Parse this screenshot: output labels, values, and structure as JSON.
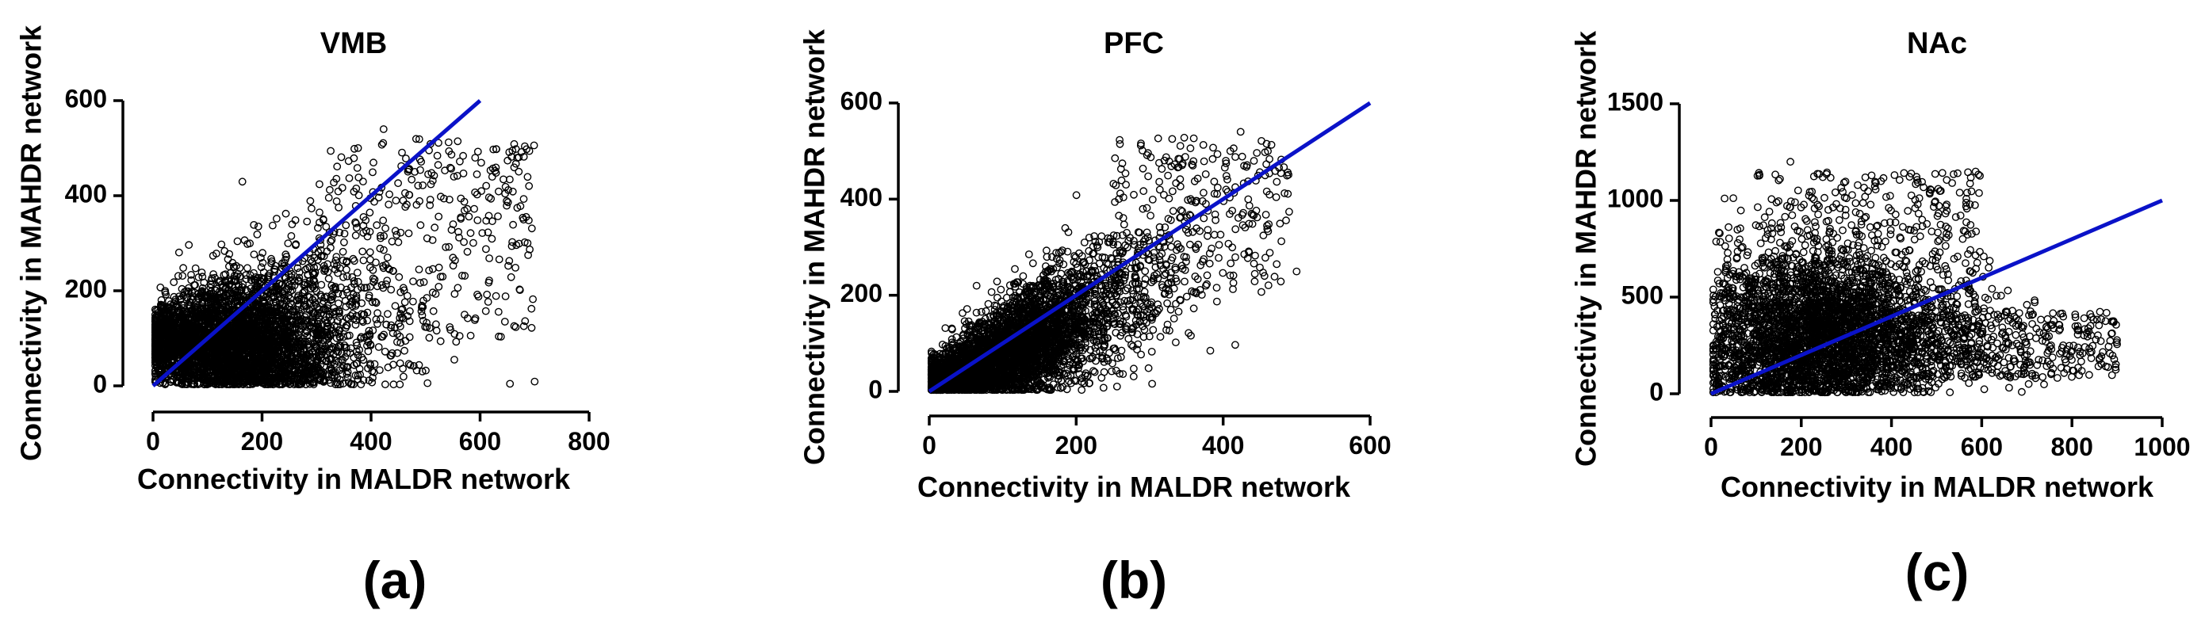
{
  "chart_data": [
    {
      "type": "scatter",
      "title": "VMB",
      "panel_label": "(a)",
      "xlabel": "Connectivity in MALDR network",
      "ylabel": "Connectivity in MAHDR network",
      "xlim": [
        0,
        800
      ],
      "ylim": [
        0,
        600
      ],
      "xticks": [
        "0",
        "200",
        "400",
        "600",
        "800"
      ],
      "yticks": [
        "0",
        "200",
        "400",
        "600"
      ],
      "fit_line": {
        "x": [
          0,
          600
        ],
        "y": [
          0,
          600
        ]
      },
      "point_color": "#000000",
      "line_color": "#0a12c8",
      "cloud": {
        "x_center": 150,
        "y_center": 90,
        "x_max": 700,
        "y_max": 540
      }
    },
    {
      "type": "scatter",
      "title": "PFC",
      "panel_label": "(b)",
      "xlabel": "Connectivity in MALDR network",
      "ylabel": "Connectivity in MAHDR network",
      "xlim": [
        0,
        600
      ],
      "ylim": [
        0,
        600
      ],
      "xticks": [
        "0",
        "200",
        "400",
        "600"
      ],
      "yticks": [
        "0",
        "200",
        "400",
        "600"
      ],
      "fit_line": {
        "x": [
          0,
          600
        ],
        "y": [
          0,
          600
        ]
      },
      "point_color": "#000000",
      "line_color": "#0a12c8",
      "cloud": {
        "x_center": 110,
        "y_center": 100,
        "x_max": 500,
        "y_max": 540
      }
    },
    {
      "type": "scatter",
      "title": "NAc",
      "panel_label": "(c)",
      "xlabel": "Connectivity in MALDR network",
      "ylabel": "Connectivity in MAHDR network",
      "xlim": [
        0,
        1000
      ],
      "ylim": [
        0,
        1500
      ],
      "xticks": [
        "0",
        "200",
        "400",
        "600",
        "800",
        "1000"
      ],
      "yticks": [
        "0",
        "500",
        "1000",
        "1500"
      ],
      "fit_line": {
        "x": [
          0,
          1000
        ],
        "y": [
          0,
          1000
        ]
      },
      "point_color": "#000000",
      "line_color": "#0a12c8",
      "cloud": {
        "x_center": 250,
        "y_center": 300,
        "x_max": 900,
        "y_max": 1200
      }
    }
  ]
}
